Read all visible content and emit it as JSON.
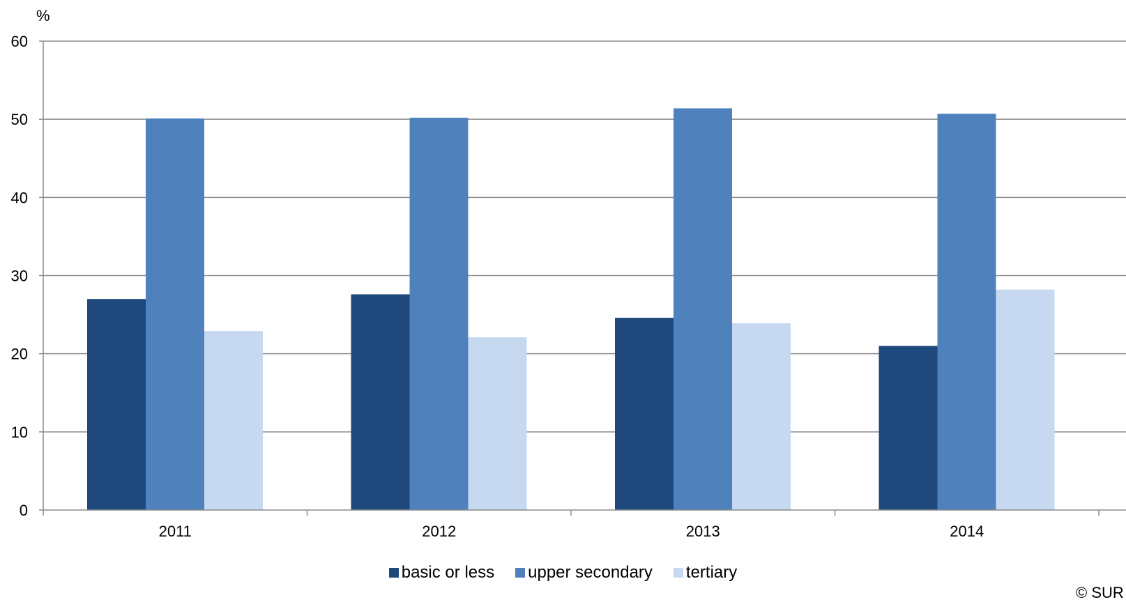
{
  "chart_data": {
    "type": "bar",
    "title": "",
    "ylabel": "%",
    "xlabel": "",
    "ylim": [
      0,
      60
    ],
    "yticks": [
      0,
      10,
      20,
      30,
      40,
      50,
      60
    ],
    "categories": [
      "2011",
      "2012",
      "2013",
      "2014"
    ],
    "series": [
      {
        "name": "basic or less",
        "color": "#1F497D",
        "values": [
          27.0,
          27.6,
          24.6,
          21.0
        ]
      },
      {
        "name": "upper secondary",
        "color": "#4F81BD",
        "values": [
          50.1,
          50.2,
          51.4,
          50.7
        ]
      },
      {
        "name": "tertiary",
        "color": "#C6D9F1",
        "values": [
          22.9,
          22.1,
          23.9,
          28.2
        ]
      }
    ],
    "grid": true,
    "legend_position": "bottom"
  },
  "footer": {
    "copyright": "© SUR"
  }
}
